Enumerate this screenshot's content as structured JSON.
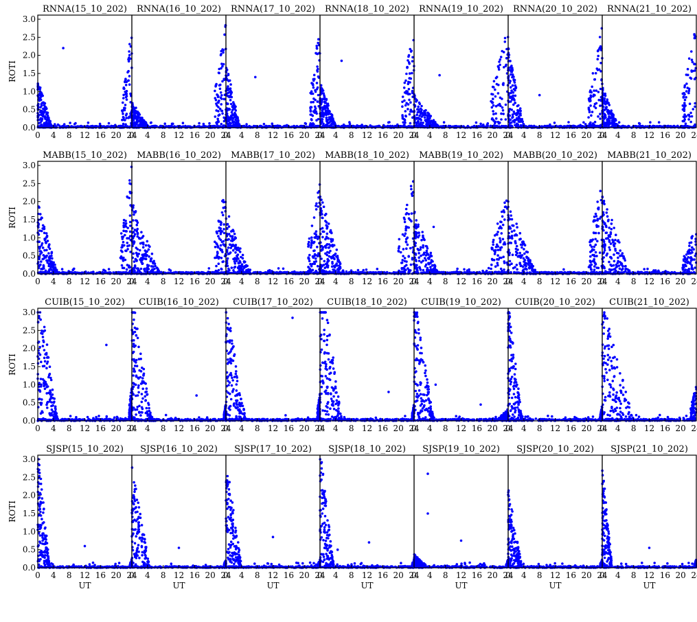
{
  "figure": {
    "stations": [
      "RNNA",
      "MABB",
      "CUIB",
      "SJSP"
    ],
    "dates": [
      "15_10_202",
      "16_10_202",
      "17_10_202",
      "18_10_202",
      "19_10_202",
      "20_10_202",
      "21_10_202"
    ],
    "ylabel": "ROTI",
    "xlabel": "UT",
    "point_color": "#0000ff",
    "frame_color": "#000000"
  },
  "chart_data": {
    "type": "scatter",
    "layout": "4x7 panel grid",
    "series_color": "#0000ff",
    "x_axis": {
      "label": "UT",
      "range": [
        0,
        24
      ],
      "ticks": [
        "0",
        "4",
        "8",
        "12",
        "16",
        "20",
        "24"
      ]
    },
    "y_axis": {
      "label": "ROTI",
      "range": [
        0,
        3
      ],
      "ticks": [
        "0.0",
        "0.5",
        "1.0",
        "1.5",
        "2.0",
        "2.5",
        "3.0"
      ]
    },
    "grid": false,
    "panels": [
      {
        "title": "RNNA(15_10_202)",
        "station": "RNNA",
        "pre_activity": 0.6,
        "pre_end": 3.5,
        "post_start": 21.5,
        "post_peak": 2.8,
        "floor": 0.05,
        "isolated": [
          [
            6.5,
            2.2
          ]
        ]
      },
      {
        "title": "RNNA(16_10_202)",
        "station": "RNNA",
        "pre_activity": 0.3,
        "pre_end": 4,
        "post_start": 21,
        "post_peak": 3.0,
        "floor": 0.05,
        "isolated": []
      },
      {
        "title": "RNNA(17_10_202)",
        "station": "RNNA",
        "pre_activity": 0.8,
        "pre_end": 3.5,
        "post_start": 21.5,
        "post_peak": 3.0,
        "floor": 0.05,
        "isolated": [
          [
            7.5,
            1.4
          ]
        ]
      },
      {
        "title": "RNNA(18_10_202)",
        "station": "RNNA",
        "pre_activity": 0.6,
        "pre_end": 4,
        "post_start": 21,
        "post_peak": 3.0,
        "floor": 0.05,
        "isolated": [
          [
            5.5,
            1.85
          ]
        ]
      },
      {
        "title": "RNNA(19_10_202)",
        "station": "RNNA",
        "pre_activity": 0.4,
        "pre_end": 6,
        "post_start": 19.5,
        "post_peak": 2.9,
        "floor": 0.05,
        "isolated": [
          [
            6.5,
            1.45
          ]
        ]
      },
      {
        "title": "RNNA(20_10_202)",
        "station": "RNNA",
        "pre_activity": 1.0,
        "pre_end": 4,
        "post_start": 20.5,
        "post_peak": 2.9,
        "floor": 0.05,
        "isolated": [
          [
            8,
            0.9
          ]
        ]
      },
      {
        "title": "RNNA(21_10_202)",
        "station": "RNNA",
        "pre_activity": 0.5,
        "pre_end": 4,
        "post_start": 20.5,
        "post_peak": 3.0,
        "floor": 0.05,
        "isolated": []
      },
      {
        "title": "MABB(15_10_202)",
        "station": "MABB",
        "pre_activity": 0.9,
        "pre_end": 5,
        "post_start": 21,
        "post_peak": 3.0,
        "floor": 0.05,
        "isolated": []
      },
      {
        "title": "MABB(16_10_202)",
        "station": "MABB",
        "pre_activity": 0.9,
        "pre_end": 7,
        "post_start": 21,
        "post_peak": 2.7,
        "floor": 0.05,
        "isolated": []
      },
      {
        "title": "MABB(17_10_202)",
        "station": "MABB",
        "pre_activity": 0.8,
        "pre_end": 6,
        "post_start": 21,
        "post_peak": 2.7,
        "floor": 0.05,
        "isolated": []
      },
      {
        "title": "MABB(18_10_202)",
        "station": "MABB",
        "pre_activity": 1.0,
        "pre_end": 6,
        "post_start": 20,
        "post_peak": 2.8,
        "floor": 0.05,
        "isolated": []
      },
      {
        "title": "MABB(19_10_202)",
        "station": "MABB",
        "pre_activity": 0.8,
        "pre_end": 6,
        "post_start": 19.5,
        "post_peak": 2.4,
        "floor": 0.05,
        "isolated": [
          [
            5,
            1.3
          ]
        ]
      },
      {
        "title": "MABB(20_10_202)",
        "station": "MABB",
        "pre_activity": 0.9,
        "pre_end": 7,
        "post_start": 20.5,
        "post_peak": 2.6,
        "floor": 0.05,
        "isolated": []
      },
      {
        "title": "MABB(21_10_202)",
        "station": "MABB",
        "pre_activity": 1.0,
        "pre_end": 7,
        "post_start": 20.5,
        "post_peak": 1.3,
        "floor": 0.05,
        "isolated": []
      },
      {
        "title": "CUIB(15_10_202)",
        "station": "CUIB",
        "pre_activity": 1.8,
        "pre_end": 5,
        "post_start": 23.3,
        "post_peak": 1.0,
        "floor": 0.05,
        "isolated": [
          [
            17.5,
            2.1
          ]
        ]
      },
      {
        "title": "CUIB(16_10_202)",
        "station": "CUIB",
        "pre_activity": 1.6,
        "pre_end": 5,
        "post_start": 23.5,
        "post_peak": 0.5,
        "floor": 0.05,
        "isolated": [
          [
            16.5,
            0.7
          ]
        ]
      },
      {
        "title": "CUIB(17_10_202)",
        "station": "CUIB",
        "pre_activity": 1.6,
        "pre_end": 5,
        "post_start": 23.3,
        "post_peak": 0.8,
        "floor": 0.05,
        "isolated": [
          [
            17,
            2.85
          ]
        ]
      },
      {
        "title": "CUIB(18_10_202)",
        "station": "CUIB",
        "pre_activity": 2.0,
        "pre_end": 5.5,
        "post_start": 23.5,
        "post_peak": 0.5,
        "floor": 0.05,
        "isolated": [
          [
            17.5,
            0.8
          ]
        ]
      },
      {
        "title": "CUIB(19_10_202)",
        "station": "CUIB",
        "pre_activity": 1.6,
        "pre_end": 5,
        "post_start": 22,
        "post_peak": 0.3,
        "floor": 0.05,
        "isolated": [
          [
            5.5,
            1.0
          ],
          [
            17,
            0.45
          ]
        ]
      },
      {
        "title": "CUIB(20_10_202)",
        "station": "CUIB",
        "pre_activity": 1.5,
        "pre_end": 3.5,
        "post_start": 23.5,
        "post_peak": 0.4,
        "floor": 0.05,
        "isolated": []
      },
      {
        "title": "CUIB(21_10_202)",
        "station": "CUIB",
        "pre_activity": 1.5,
        "pre_end": 8,
        "post_start": 22.5,
        "post_peak": 1.0,
        "floor": 0.05,
        "isolated": []
      },
      {
        "title": "SJSP(15_10_202)",
        "station": "SJSP",
        "pre_activity": 1.5,
        "pre_end": 3,
        "post_start": 23.5,
        "post_peak": 0.2,
        "floor": 0.04,
        "isolated": [
          [
            12,
            0.6
          ]
        ]
      },
      {
        "title": "SJSP(16_10_202)",
        "station": "SJSP",
        "pre_activity": 1.3,
        "pre_end": 4.5,
        "post_start": 23.5,
        "post_peak": 0.2,
        "floor": 0.04,
        "isolated": [
          [
            12,
            0.55
          ]
        ]
      },
      {
        "title": "SJSP(17_10_202)",
        "station": "SJSP",
        "pre_activity": 1.4,
        "pre_end": 4,
        "post_start": 23.5,
        "post_peak": 0.2,
        "floor": 0.04,
        "isolated": [
          [
            12,
            0.85
          ]
        ]
      },
      {
        "title": "SJSP(18_10_202)",
        "station": "SJSP",
        "pre_activity": 1.5,
        "pre_end": 3.5,
        "post_start": 23.5,
        "post_peak": 0.2,
        "floor": 0.04,
        "isolated": [
          [
            12.5,
            0.7
          ],
          [
            4.5,
            0.5
          ]
        ]
      },
      {
        "title": "SJSP(19_10_202)",
        "station": "SJSP",
        "pre_activity": 0.15,
        "pre_end": 3,
        "post_start": 23.5,
        "post_peak": 0.2,
        "floor": 0.04,
        "isolated": [
          [
            3.5,
            2.6
          ],
          [
            3.5,
            1.5
          ],
          [
            12,
            0.75
          ]
        ]
      },
      {
        "title": "SJSP(20_10_202)",
        "station": "SJSP",
        "pre_activity": 1.0,
        "pre_end": 3.5,
        "post_start": 23.5,
        "post_peak": 0.2,
        "floor": 0.04,
        "isolated": []
      },
      {
        "title": "SJSP(21_10_202)",
        "station": "SJSP",
        "pre_activity": 1.3,
        "pre_end": 2.5,
        "post_start": 23.5,
        "post_peak": 0.2,
        "floor": 0.04,
        "isolated": [
          [
            12,
            0.55
          ]
        ]
      }
    ]
  }
}
